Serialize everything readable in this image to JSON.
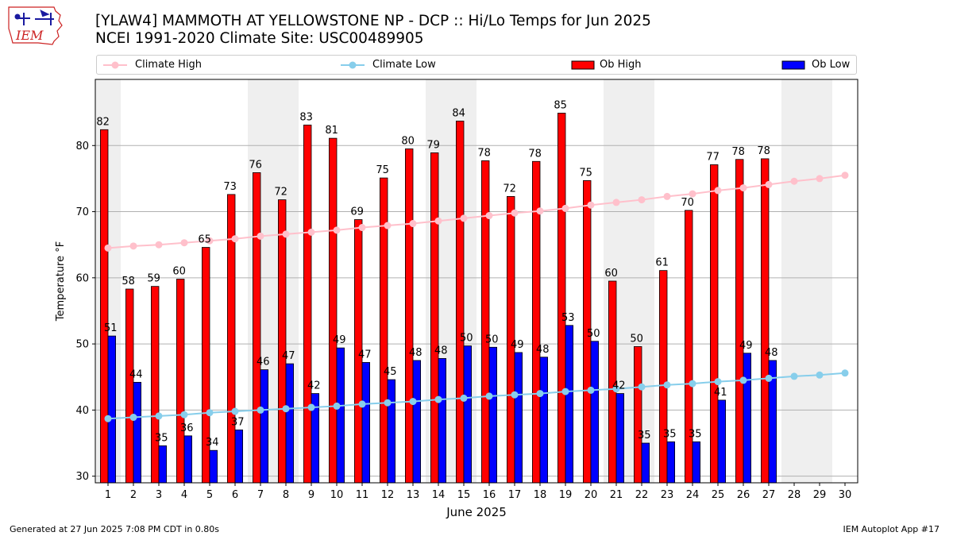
{
  "header": {
    "title_line1": "[YLAW4] MAMMOTH AT YELLOWSTONE NP - DCP :: Hi/Lo Temps for Jun 2025",
    "title_line2": "NCEI 1991-2020 Climate Site: USC00489905"
  },
  "logo": {
    "text": "IEM",
    "icon": "iowa-state-map-logo"
  },
  "legend": {
    "items": [
      {
        "label": "Climate High",
        "marker": "line-circle",
        "color": "#ffc0cb"
      },
      {
        "label": "Climate Low",
        "marker": "line-circle",
        "color": "#87ceeb"
      },
      {
        "label": "Ob High",
        "marker": "rect",
        "color": "#ff0000"
      },
      {
        "label": "Ob Low",
        "marker": "rect",
        "color": "#0000ff"
      }
    ]
  },
  "footer": {
    "left": "Generated at 27 Jun 2025 7:08 PM CDT in 0.80s",
    "right": "IEM Autoplot App #17"
  },
  "chart_data": {
    "type": "bar",
    "title": "[YLAW4] MAMMOTH AT YELLOWSTONE NP - DCP :: Hi/Lo Temps for Jun 2025",
    "xlabel": "June 2025",
    "ylabel": "Temperature °F",
    "ylim": [
      29,
      90
    ],
    "xlim": [
      0.5,
      30.5
    ],
    "yticks": [
      30,
      40,
      50,
      60,
      70,
      80
    ],
    "days": [
      1,
      2,
      3,
      4,
      5,
      6,
      7,
      8,
      9,
      10,
      11,
      12,
      13,
      14,
      15,
      16,
      17,
      18,
      19,
      20,
      21,
      22,
      23,
      24,
      25,
      26,
      27,
      28,
      29,
      30
    ],
    "weekend_days": [
      1,
      7,
      8,
      14,
      15,
      21,
      22,
      28,
      29
    ],
    "grid": "horizontal",
    "series": [
      {
        "name": "Ob High",
        "kind": "bar",
        "color": "#ff0000",
        "values": [
          82.4,
          58.3,
          58.7,
          59.8,
          64.6,
          72.6,
          75.9,
          71.8,
          83.1,
          81.1,
          68.8,
          75.1,
          79.5,
          78.9,
          83.7,
          77.7,
          72.3,
          77.6,
          84.9,
          74.7,
          59.5,
          49.6,
          61.1,
          70.2,
          77.1,
          77.9,
          78.0
        ],
        "labels": [
          "82",
          "58",
          "59",
          "60",
          "65",
          "73",
          "76",
          "72",
          "83",
          "81",
          "69",
          "75",
          "80",
          "79",
          "84",
          "78",
          "72",
          "78",
          "85",
          "75",
          "60",
          "50",
          "61",
          "70",
          "77",
          "78",
          "78"
        ]
      },
      {
        "name": "Ob Low",
        "kind": "bar",
        "color": "#0000ff",
        "values": [
          51.2,
          44.2,
          34.6,
          36.1,
          33.9,
          37.0,
          46.1,
          47.0,
          42.5,
          49.4,
          47.2,
          44.6,
          47.5,
          47.8,
          49.7,
          49.5,
          48.7,
          48.0,
          52.8,
          50.4,
          42.5,
          35.0,
          35.2,
          35.2,
          41.5,
          48.6,
          47.5
        ],
        "labels": [
          "51",
          "44",
          "35",
          "36",
          "34",
          "37",
          "46",
          "47",
          "42",
          "49",
          "47",
          "45",
          "48",
          "48",
          "50",
          "50",
          "49",
          "48",
          "53",
          "50",
          "42",
          "35",
          "35",
          "35",
          "41",
          "49",
          "48"
        ]
      },
      {
        "name": "Climate High",
        "kind": "line",
        "color": "#ffc0cb",
        "values": [
          64.5,
          64.8,
          65.0,
          65.3,
          65.6,
          65.9,
          66.3,
          66.6,
          66.9,
          67.2,
          67.6,
          67.9,
          68.2,
          68.6,
          69.0,
          69.4,
          69.8,
          70.1,
          70.5,
          71.0,
          71.4,
          71.8,
          72.3,
          72.7,
          73.2,
          73.6,
          74.1,
          74.6,
          75.0,
          75.5
        ]
      },
      {
        "name": "Climate Low",
        "kind": "line",
        "color": "#87ceeb",
        "values": [
          38.7,
          38.9,
          39.1,
          39.3,
          39.6,
          39.8,
          40.0,
          40.2,
          40.4,
          40.6,
          40.9,
          41.1,
          41.3,
          41.6,
          41.8,
          42.1,
          42.3,
          42.5,
          42.8,
          43.0,
          43.2,
          43.5,
          43.8,
          44.0,
          44.3,
          44.5,
          44.8,
          45.1,
          45.3,
          45.6
        ]
      }
    ]
  }
}
